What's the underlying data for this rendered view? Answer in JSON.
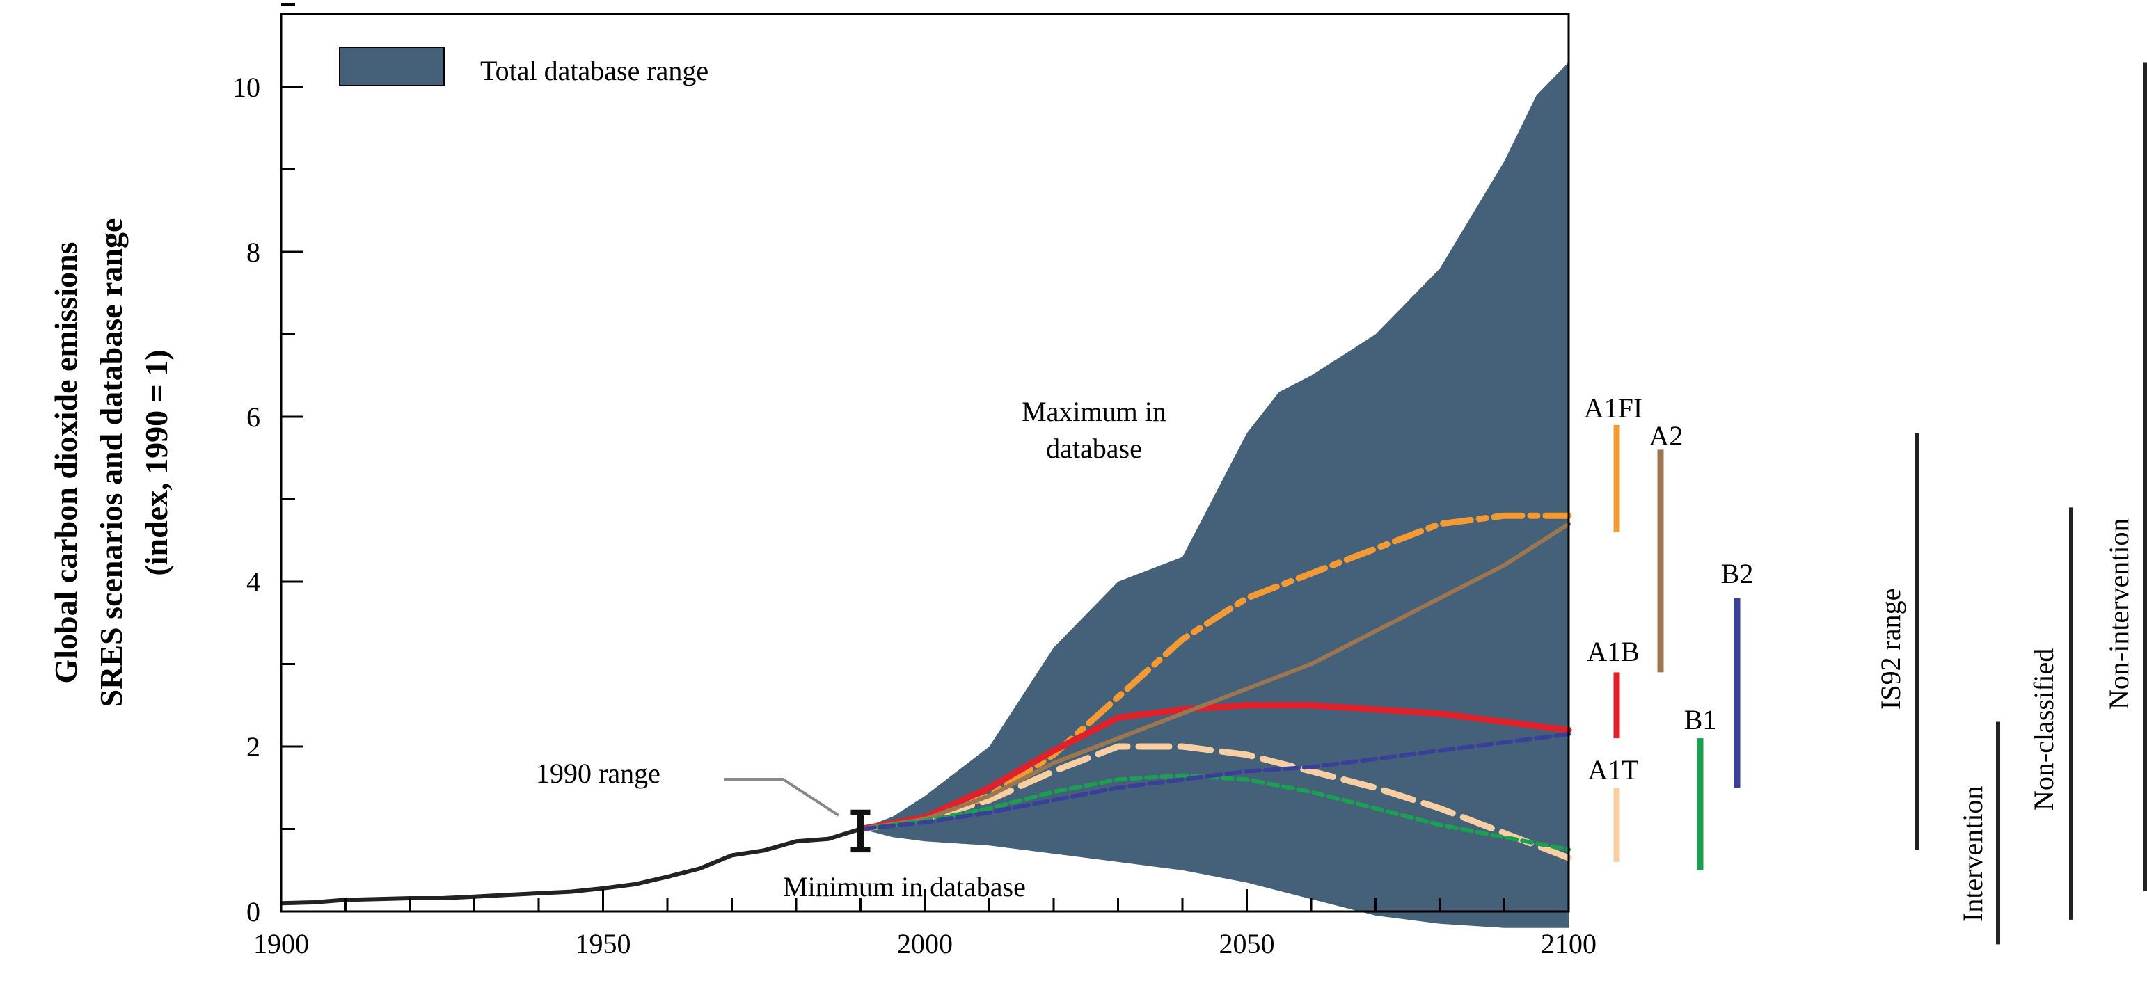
{
  "chart_data": {
    "type": "line",
    "title": "",
    "ylabel_lines": [
      "Global carbon dioxide emissions",
      "SRES scenarios and database range",
      "(index, 1990 = 1)"
    ],
    "xlabel": "",
    "xlim": [
      1900,
      2100
    ],
    "ylim": [
      0,
      11
    ],
    "x_ticks": [
      1900,
      1950,
      2000,
      2050,
      2100
    ],
    "y_ticks": [
      0,
      2,
      4,
      6,
      8,
      10
    ],
    "grid": false,
    "legend": {
      "position": "top-left",
      "entries": [
        {
          "label": "Total database range",
          "color": "#456079"
        }
      ]
    },
    "colors": {
      "range": "#456079",
      "history": "#222222",
      "A1FI": "#f39a34",
      "A2": "#9b7650",
      "A1B": "#e0202a",
      "A1T": "#f7cfa2",
      "B1": "#1aa050",
      "B2": "#3a3f9a",
      "lines": "#222222"
    },
    "database_range": {
      "x": [
        1990,
        1995,
        2000,
        2010,
        2020,
        2030,
        2040,
        2050,
        2055,
        2060,
        2070,
        2080,
        2090,
        2095,
        2100
      ],
      "max": [
        1.0,
        1.15,
        1.4,
        2.0,
        3.2,
        4.0,
        4.3,
        5.8,
        6.3,
        6.5,
        7.0,
        7.8,
        9.1,
        9.9,
        10.3
      ],
      "min": [
        1.0,
        0.9,
        0.85,
        0.8,
        0.7,
        0.6,
        0.5,
        0.35,
        0.25,
        0.15,
        -0.05,
        -0.15,
        -0.2,
        -0.2,
        -0.2
      ]
    },
    "historical": {
      "x": [
        1900,
        1905,
        1910,
        1915,
        1920,
        1925,
        1930,
        1935,
        1940,
        1945,
        1950,
        1955,
        1960,
        1965,
        1970,
        1975,
        1980,
        1985,
        1990
      ],
      "y": [
        0.1,
        0.11,
        0.14,
        0.15,
        0.16,
        0.16,
        0.18,
        0.2,
        0.22,
        0.24,
        0.28,
        0.33,
        0.42,
        0.52,
        0.68,
        0.74,
        0.85,
        0.88,
        1.0
      ]
    },
    "series": [
      {
        "name": "A1FI",
        "x": [
          1990,
          2000,
          2010,
          2020,
          2030,
          2040,
          2050,
          2060,
          2070,
          2080,
          2090,
          2100
        ],
        "y": [
          1.0,
          1.12,
          1.4,
          1.9,
          2.6,
          3.3,
          3.8,
          4.1,
          4.4,
          4.7,
          4.8,
          4.8
        ]
      },
      {
        "name": "A1T",
        "x": [
          1990,
          2000,
          2010,
          2020,
          2030,
          2040,
          2050,
          2060,
          2070,
          2080,
          2090,
          2100
        ],
        "y": [
          1.0,
          1.12,
          1.35,
          1.7,
          2.0,
          2.0,
          1.9,
          1.7,
          1.5,
          1.25,
          0.95,
          0.65
        ]
      },
      {
        "name": "A1B",
        "x": [
          1990,
          2000,
          2010,
          2020,
          2030,
          2040,
          2050,
          2060,
          2070,
          2080,
          2090,
          2100
        ],
        "y": [
          1.0,
          1.14,
          1.5,
          1.95,
          2.35,
          2.45,
          2.5,
          2.5,
          2.45,
          2.4,
          2.3,
          2.2
        ]
      },
      {
        "name": "A2",
        "x": [
          1990,
          2000,
          2010,
          2020,
          2030,
          2040,
          2050,
          2060,
          2070,
          2080,
          2090,
          2100
        ],
        "y": [
          1.0,
          1.12,
          1.4,
          1.8,
          2.1,
          2.4,
          2.7,
          3.0,
          3.4,
          3.8,
          4.2,
          4.7
        ]
      },
      {
        "name": "B1",
        "x": [
          1990,
          2000,
          2010,
          2020,
          2030,
          2040,
          2050,
          2060,
          2070,
          2080,
          2090,
          2100
        ],
        "y": [
          1.0,
          1.1,
          1.25,
          1.45,
          1.6,
          1.65,
          1.6,
          1.45,
          1.25,
          1.05,
          0.9,
          0.75
        ]
      },
      {
        "name": "B2",
        "x": [
          1990,
          2000,
          2010,
          2020,
          2030,
          2040,
          2050,
          2060,
          2070,
          2080,
          2090,
          2100
        ],
        "y": [
          1.0,
          1.08,
          1.2,
          1.35,
          1.5,
          1.6,
          1.7,
          1.75,
          1.85,
          1.95,
          2.05,
          2.15
        ]
      }
    ],
    "annotations": {
      "maximum_line1": "Maximum in",
      "maximum_line2": "database",
      "minimum": "Minimum in database",
      "range_1990": "1990 range"
    },
    "range_1990": {
      "x": 1990,
      "low": 0.75,
      "high": 1.2
    },
    "scenario_bars": [
      {
        "label": "A1FI",
        "low": 4.6,
        "high": 5.9
      },
      {
        "label": "A2",
        "low": 2.9,
        "high": 5.6
      },
      {
        "label": "A1B",
        "low": 2.1,
        "high": 2.9
      },
      {
        "label": "A1T",
        "low": 0.6,
        "high": 1.5
      },
      {
        "label": "B1",
        "low": 0.5,
        "high": 2.1
      },
      {
        "label": "B2",
        "low": 1.5,
        "high": 3.8
      }
    ],
    "range_bars": [
      {
        "label": "IS92 range",
        "low": 0.75,
        "high": 5.8
      },
      {
        "label": "Intervention",
        "low": -0.4,
        "high": 2.3
      },
      {
        "label": "Non-classified",
        "low": -0.1,
        "high": 4.9
      },
      {
        "label": "Non-intervention",
        "low": 0.25,
        "high": 10.3
      }
    ]
  }
}
